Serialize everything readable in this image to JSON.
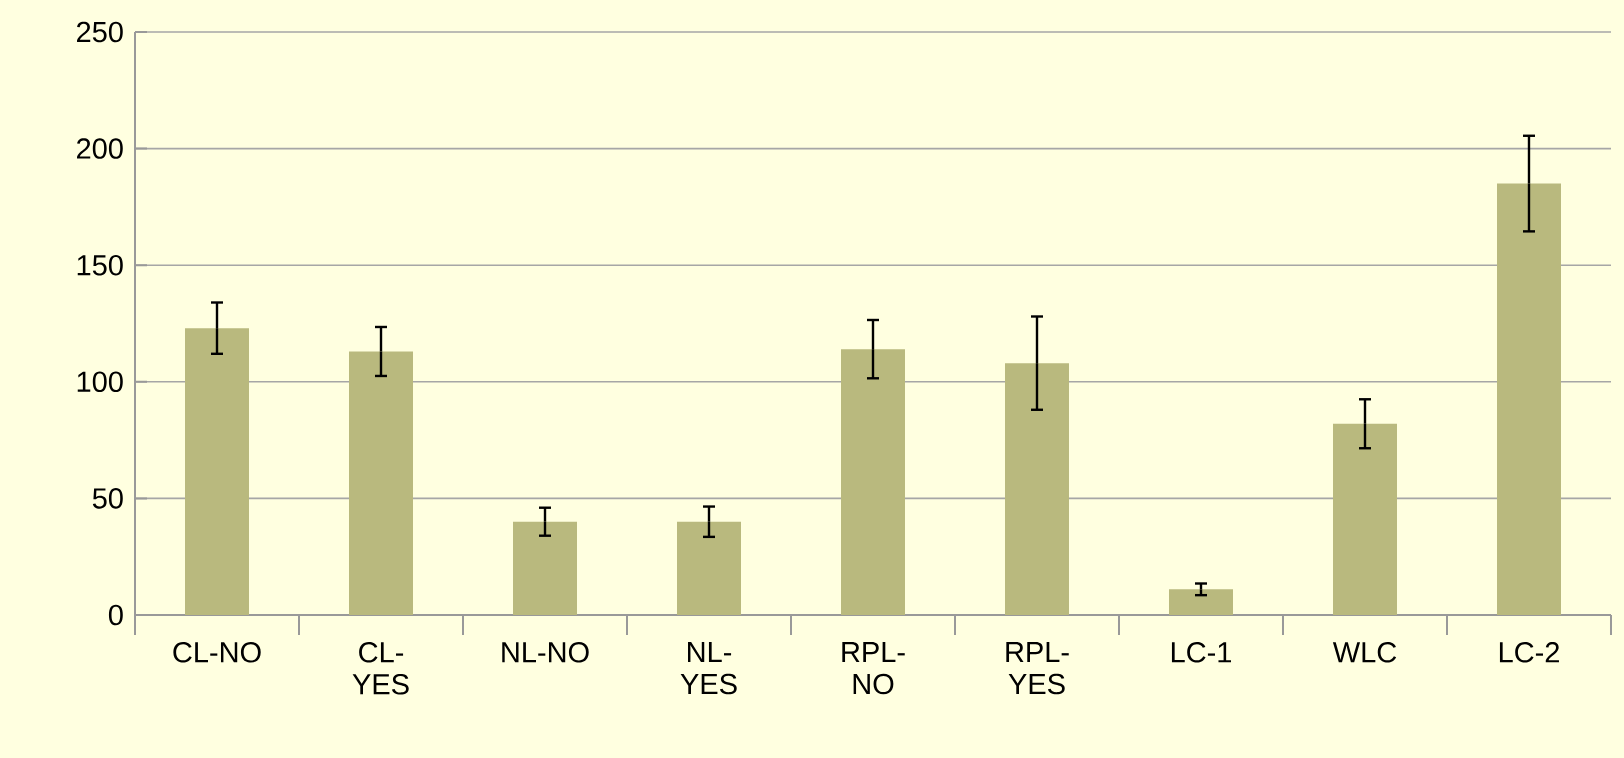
{
  "chart_data": {
    "type": "bar",
    "categories": [
      "CL-NO",
      "CL-YES",
      "NL-NO",
      "NL-YES",
      "RPL-NO",
      "RPL-YES",
      "LC-1",
      "WLC",
      "LC-2"
    ],
    "values": [
      123,
      113,
      40,
      40,
      114,
      108,
      11,
      82,
      185
    ],
    "errors": [
      11,
      10.5,
      6,
      6.5,
      12.5,
      20,
      2.5,
      10.5,
      20.5
    ],
    "color": "#b9b97e",
    "ylim": [
      0,
      250
    ],
    "yticks": [
      0,
      50,
      100,
      150,
      200,
      250
    ],
    "grid": "y"
  }
}
